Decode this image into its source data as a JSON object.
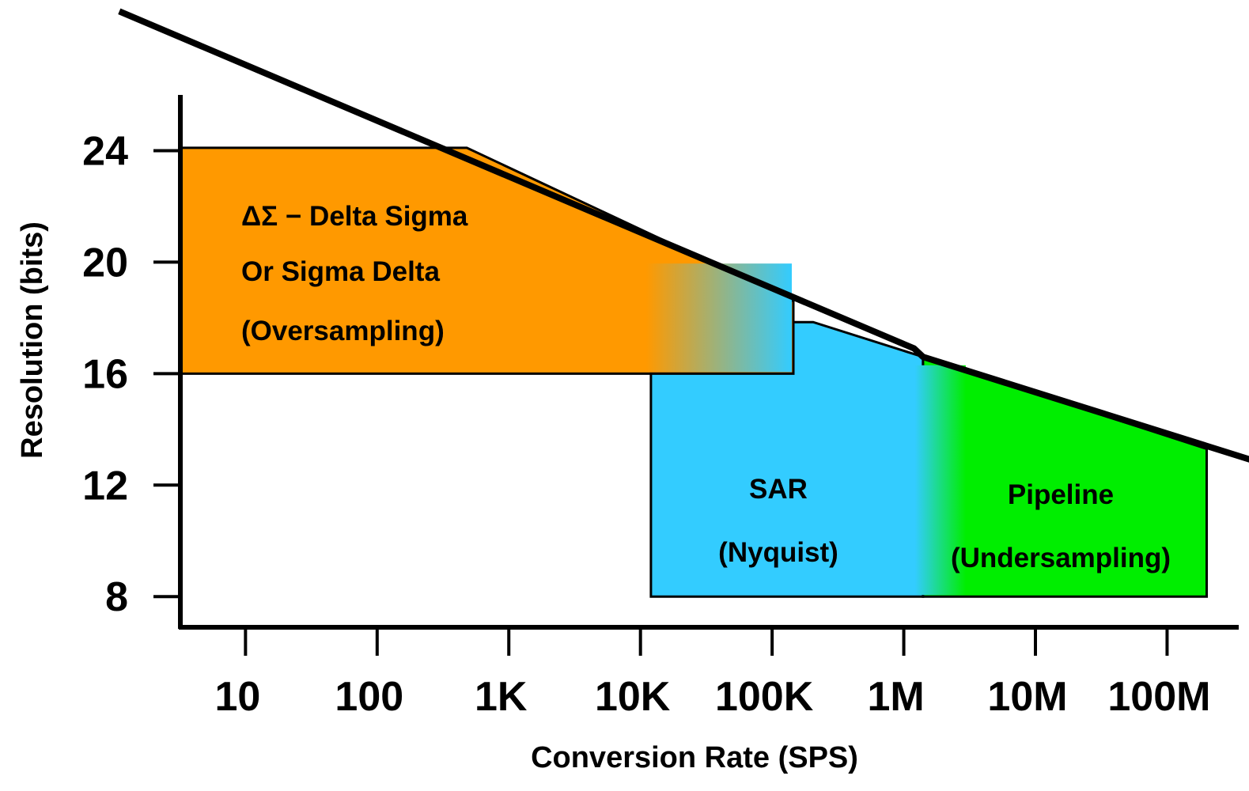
{
  "chart_data": {
    "type": "area",
    "title": "",
    "xlabel": "Conversion Rate (SPS)",
    "ylabel": "Resolution (bits)",
    "x_scale": "log",
    "x_ticks": [
      {
        "value": 10,
        "label": "10"
      },
      {
        "value": 100,
        "label": "100"
      },
      {
        "value": 1000,
        "label": "1K"
      },
      {
        "value": 10000,
        "label": "10K"
      },
      {
        "value": 100000,
        "label": "100K"
      },
      {
        "value": 1000000,
        "label": "1M"
      },
      {
        "value": 10000000,
        "label": "10M"
      },
      {
        "value": 100000000,
        "label": "100M"
      }
    ],
    "y_ticks": [
      {
        "value": 8,
        "label": "8"
      },
      {
        "value": 12,
        "label": "12"
      },
      {
        "value": 16,
        "label": "16"
      },
      {
        "value": 20,
        "label": "20"
      },
      {
        "value": 24,
        "label": "24"
      }
    ],
    "xlim": [
      3.2,
      350000000
    ],
    "ylim": [
      6.9,
      26
    ],
    "grid": false,
    "legend": "none",
    "colors": {
      "delta_sigma": "#FF9900",
      "sar": "#33CCFF",
      "pipeline": "#00EE00",
      "axis": "#000000",
      "limit_line": "#000000"
    },
    "limit_line": {
      "x": [
        1.1,
        1200000,
        1400000,
        700000000
      ],
      "y": [
        29.0,
        16.9,
        16.6,
        12.6
      ]
    },
    "regions": [
      {
        "name": "delta_sigma",
        "label_lines": [
          "ΔΣ − Delta Sigma",
          "Or Sigma Delta",
          "(Oversampling)"
        ],
        "color": "#FF9900",
        "x": [
          3.2,
          480,
          145000,
          145000,
          3.2
        ],
        "y": [
          24.1,
          24.1,
          18.6,
          16.0,
          16.0
        ]
      },
      {
        "name": "sar",
        "label_lines": [
          "SAR",
          "(Nyquist)"
        ],
        "color": "#33CCFF",
        "x": [
          12000,
          12000,
          145000,
          145000,
          205000,
          1400000,
          1400000
        ],
        "y": [
          8.0,
          16.0,
          16.0,
          17.85,
          17.85,
          16.6,
          8.0
        ]
      },
      {
        "name": "pipeline",
        "label_lines": [
          "Pipeline",
          "(Undersampling)"
        ],
        "color": "#00EE00",
        "x": [
          1400000,
          1400000,
          200000000,
          200000000
        ],
        "y": [
          8.0,
          16.6,
          13.3,
          8.0
        ]
      }
    ]
  }
}
